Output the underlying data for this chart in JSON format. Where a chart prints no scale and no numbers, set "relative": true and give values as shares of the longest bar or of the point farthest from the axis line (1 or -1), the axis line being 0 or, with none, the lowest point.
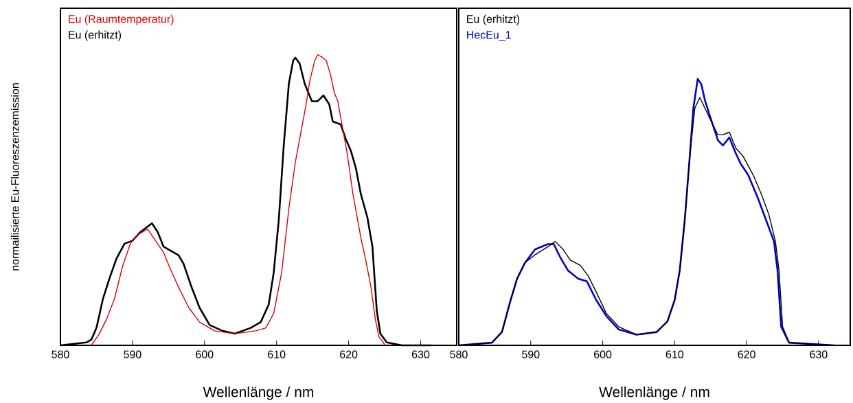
{
  "chart_data": [
    {
      "type": "line",
      "relative": true,
      "xlabel": "Wellenlänge / nm",
      "ylabel": "normailisierte Eu-Fluoreszenzemission",
      "xlim": [
        580,
        635
      ],
      "xticks": [
        580,
        590,
        600,
        610,
        620,
        630
      ],
      "legend": "top left",
      "marker": "none",
      "series": [
        {
          "name": "Eu (Raumtemperatur)",
          "color": "#dd0000",
          "x": [
            584.3,
            585.4,
            586.4,
            587.5,
            588.6,
            589.7,
            590.7,
            592.1,
            593.2,
            594.3,
            595.3,
            596.4,
            597.8,
            599.3,
            601.4,
            604.2,
            607.1,
            608.5,
            609.6,
            610.7,
            611.7,
            612.6,
            613.5,
            614.1,
            614.6,
            615.3,
            615.7,
            616.4,
            616.9,
            617.5,
            618.0,
            618.5,
            619.0,
            619.8,
            620.6,
            621.7,
            622.4,
            623.1,
            623.7,
            624.2,
            625.1
          ],
          "values": [
            0.0,
            0.04,
            0.09,
            0.16,
            0.27,
            0.35,
            0.38,
            0.4,
            0.36,
            0.32,
            0.26,
            0.2,
            0.13,
            0.08,
            0.05,
            0.04,
            0.05,
            0.06,
            0.11,
            0.25,
            0.47,
            0.63,
            0.75,
            0.83,
            0.91,
            0.98,
            1.0,
            0.99,
            0.98,
            0.93,
            0.87,
            0.84,
            0.77,
            0.66,
            0.52,
            0.37,
            0.29,
            0.2,
            0.09,
            0.03,
            0.0
          ]
        },
        {
          "name": "Eu (erhitzt)",
          "color": "#000000",
          "x": [
            580.0,
            583.6,
            584.3,
            585.0,
            585.9,
            586.8,
            587.8,
            588.9,
            590.0,
            591.1,
            592.7,
            593.5,
            594.3,
            595.7,
            596.4,
            597.1,
            598.2,
            599.3,
            600.7,
            602.5,
            604.2,
            606.4,
            607.8,
            608.9,
            609.6,
            610.3,
            611.0,
            611.7,
            612.3,
            612.6,
            613.2,
            613.9,
            614.9,
            615.7,
            616.5,
            617.3,
            617.8,
            618.9,
            619.6,
            620.3,
            621.0,
            621.7,
            622.6,
            623.3,
            623.9,
            624.4,
            625.3,
            627.4,
            631.5
          ],
          "values": [
            0.0,
            0.01,
            0.02,
            0.06,
            0.16,
            0.23,
            0.3,
            0.35,
            0.36,
            0.39,
            0.42,
            0.39,
            0.34,
            0.32,
            0.31,
            0.28,
            0.2,
            0.13,
            0.07,
            0.05,
            0.04,
            0.06,
            0.08,
            0.14,
            0.25,
            0.43,
            0.69,
            0.9,
            0.98,
            0.99,
            0.97,
            0.9,
            0.84,
            0.84,
            0.86,
            0.83,
            0.77,
            0.76,
            0.71,
            0.67,
            0.61,
            0.52,
            0.44,
            0.34,
            0.12,
            0.04,
            0.01,
            0.0,
            0.0
          ]
        }
      ]
    },
    {
      "type": "line",
      "relative": true,
      "xlabel": "Wellenlänge / nm",
      "xlim": [
        580,
        634.4
      ],
      "xticks": [
        580,
        590,
        600,
        610,
        620,
        630
      ],
      "legend": "top left",
      "marker": "none",
      "series": [
        {
          "name": "Eu (erhitzt)",
          "color": "#000000",
          "x": [
            580.0,
            584.6,
            586.0,
            587.1,
            588.1,
            589.2,
            590.6,
            592.4,
            593.4,
            594.5,
            595.5,
            596.9,
            598.0,
            599.1,
            600.5,
            602.2,
            604.7,
            607.5,
            609.0,
            610.0,
            610.7,
            611.4,
            612.1,
            612.8,
            613.5,
            614.2,
            614.9,
            616.0,
            616.7,
            617.6,
            618.5,
            619.5,
            620.9,
            622.0,
            623.1,
            624.0,
            624.5,
            625.0,
            625.9,
            632.2
          ],
          "values": [
            0.0,
            0.01,
            0.05,
            0.16,
            0.25,
            0.31,
            0.34,
            0.37,
            0.39,
            0.36,
            0.32,
            0.3,
            0.26,
            0.2,
            0.12,
            0.07,
            0.04,
            0.05,
            0.09,
            0.17,
            0.28,
            0.47,
            0.71,
            0.89,
            0.93,
            0.89,
            0.85,
            0.79,
            0.79,
            0.8,
            0.74,
            0.71,
            0.64,
            0.57,
            0.49,
            0.39,
            0.28,
            0.07,
            0.01,
            0.0
          ]
        },
        {
          "name": "HecEu_1",
          "color": "#0000cc",
          "x": [
            580.0,
            584.6,
            586.0,
            587.1,
            588.1,
            589.2,
            590.6,
            592.4,
            593.2,
            594.1,
            595.2,
            596.6,
            597.8,
            599.1,
            600.5,
            602.2,
            604.7,
            607.5,
            609.0,
            610.0,
            610.7,
            611.4,
            612.1,
            612.6,
            613.2,
            613.7,
            614.2,
            614.9,
            616.0,
            616.7,
            617.6,
            618.5,
            619.2,
            620.2,
            621.6,
            622.7,
            623.8,
            624.3,
            624.8,
            625.9,
            632.2
          ],
          "values": [
            0.0,
            0.01,
            0.05,
            0.16,
            0.25,
            0.31,
            0.36,
            0.38,
            0.38,
            0.33,
            0.28,
            0.25,
            0.24,
            0.17,
            0.11,
            0.06,
            0.04,
            0.05,
            0.09,
            0.17,
            0.28,
            0.47,
            0.71,
            0.89,
            1.0,
            0.98,
            0.92,
            0.86,
            0.77,
            0.75,
            0.78,
            0.72,
            0.68,
            0.64,
            0.55,
            0.47,
            0.39,
            0.28,
            0.07,
            0.01,
            0.0
          ]
        }
      ]
    }
  ]
}
